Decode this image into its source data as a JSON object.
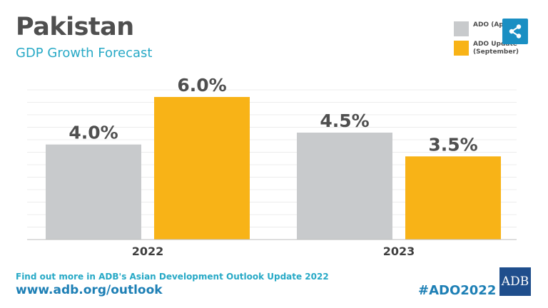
{
  "header": {
    "title": "Pakistan",
    "subtitle": "GDP Growth Forecast"
  },
  "legend": {
    "items": [
      {
        "label": "ADO (Ap",
        "color": "#c8cacc"
      },
      {
        "label": "ADO Update (September)",
        "line1": "ADO Update",
        "line2": "(September)",
        "color": "#f8b317"
      }
    ]
  },
  "share_icon": "share-icon",
  "footer": {
    "line1": "Find out more in ADB's Asian Development Outlook Update 2022",
    "url": "www.adb.org/outlook",
    "hashtag": "#ADO2022",
    "logo": "ADB"
  },
  "chart_data": {
    "type": "bar",
    "categories": [
      "2022",
      "2023"
    ],
    "series": [
      {
        "name": "ADO (April)",
        "values": [
          4.0,
          4.5
        ],
        "labels": [
          "4.0%",
          "4.5%"
        ],
        "color": "#c8cacc"
      },
      {
        "name": "ADO Update (September)",
        "values": [
          6.0,
          3.5
        ],
        "labels": [
          "6.0%",
          "3.5%"
        ],
        "color": "#f8b317"
      }
    ],
    "ylim": [
      0,
      6.3
    ],
    "grid": true,
    "legend_position": "top-right"
  }
}
